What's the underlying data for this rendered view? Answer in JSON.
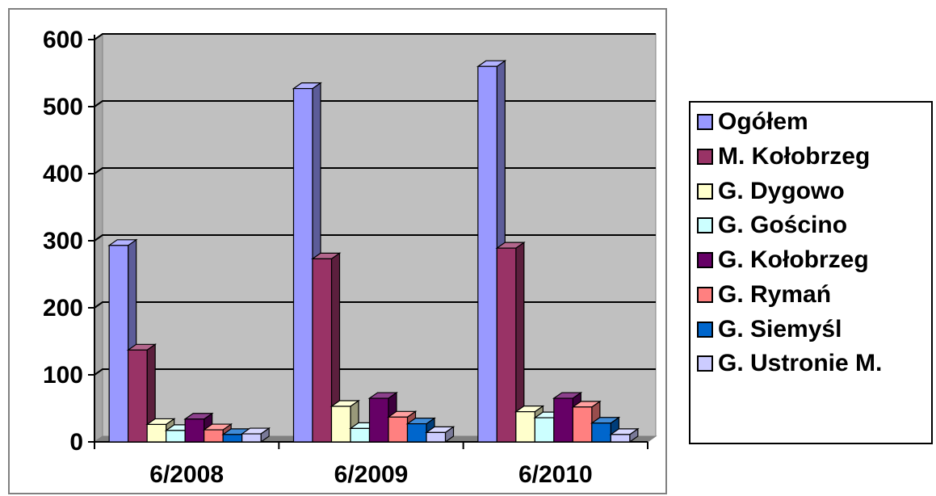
{
  "chart_data": {
    "type": "bar",
    "categories": [
      "6/2008",
      "6/2009",
      "6/2010"
    ],
    "series": [
      {
        "name": "Ogółem",
        "color": "#9999ff",
        "values": [
          293,
          527,
          560
        ]
      },
      {
        "name": "M. Kołobrzeg",
        "color": "#993366",
        "values": [
          137,
          273,
          289
        ]
      },
      {
        "name": "G. Dygowo",
        "color": "#ffffcc",
        "values": [
          26,
          53,
          45
        ]
      },
      {
        "name": "G. Gościno",
        "color": "#ccffff",
        "values": [
          17,
          20,
          36
        ]
      },
      {
        "name": "G. Kołobrzeg",
        "color": "#660066",
        "values": [
          34,
          65,
          65
        ]
      },
      {
        "name": "G. Rymań",
        "color": "#ff8080",
        "values": [
          18,
          37,
          52
        ]
      },
      {
        "name": "G. Siemyśl",
        "color": "#0066cc",
        "values": [
          11,
          27,
          28
        ]
      },
      {
        "name": "G. Ustronie M.",
        "color": "#ccccff",
        "values": [
          12,
          14,
          11
        ]
      }
    ],
    "yticks": [
      0,
      100,
      200,
      300,
      400,
      500,
      600
    ],
    "ylim": [
      0,
      600
    ],
    "grid": true,
    "legend": "right",
    "plot_background": "#c0c0c0"
  }
}
